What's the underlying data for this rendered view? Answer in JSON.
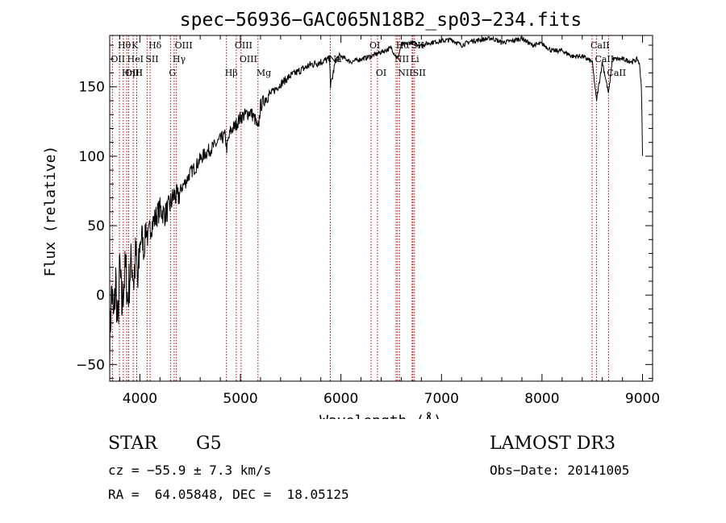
{
  "chart_data": {
    "type": "line",
    "title": "spec−56936−GAC065N18B2_sp03−234.fits",
    "xlabel": "Wavelength (Å)",
    "ylabel": "Flux (relative)",
    "xlim": [
      3700,
      9100
    ],
    "ylim": [
      -62,
      187
    ],
    "xticks": [
      4000,
      5000,
      6000,
      7000,
      8000,
      9000
    ],
    "yticks": [
      -50,
      0,
      50,
      100,
      150
    ],
    "xtick_labels": [
      "4000",
      "5000",
      "6000",
      "7000",
      "8000",
      "9000"
    ],
    "ytick_labels": [
      "−50",
      "0",
      "50",
      "100",
      "150"
    ],
    "grid": false,
    "series": [
      {
        "name": "flux",
        "x": [
          3700,
          3720,
          3740,
          3760,
          3780,
          3800,
          3820,
          3840,
          3860,
          3880,
          3900,
          3920,
          3940,
          3960,
          3980,
          4000,
          4020,
          4040,
          4060,
          4080,
          4100,
          4150,
          4200,
          4250,
          4300,
          4340,
          4380,
          4420,
          4460,
          4500,
          4550,
          4600,
          4650,
          4700,
          4750,
          4800,
          4850,
          4861,
          4900,
          4950,
          5000,
          5050,
          5100,
          5150,
          5175,
          5200,
          5250,
          5300,
          5400,
          5500,
          5600,
          5700,
          5800,
          5890,
          5896,
          5950,
          6000,
          6100,
          6200,
          6300,
          6400,
          6500,
          6563,
          6600,
          6700,
          6800,
          6900,
          7000,
          7100,
          7200,
          7300,
          7400,
          7500,
          7600,
          7700,
          7800,
          7900,
          8000,
          8100,
          8200,
          8300,
          8400,
          8500,
          8542,
          8600,
          8662,
          8700,
          8800,
          8900,
          8950,
          8970,
          8990,
          9000
        ],
        "values": [
          -35,
          5,
          -20,
          12,
          -25,
          22,
          -10,
          8,
          20,
          -5,
          15,
          25,
          10,
          30,
          5,
          35,
          45,
          30,
          50,
          40,
          48,
          55,
          62,
          58,
          65,
          72,
          70,
          78,
          82,
          88,
          92,
          98,
          102,
          105,
          108,
          112,
          115,
          105,
          118,
          122,
          128,
          130,
          132,
          126,
          118,
          136,
          142,
          145,
          152,
          158,
          162,
          166,
          168,
          170,
          150,
          170,
          172,
          168,
          170,
          172,
          175,
          178,
          170,
          180,
          182,
          180,
          182,
          183,
          184,
          180,
          183,
          184,
          185,
          182,
          183,
          185,
          180,
          181,
          176,
          176,
          172,
          172,
          168,
          140,
          168,
          145,
          170,
          170,
          168,
          170,
          166,
          150,
          100
        ]
      }
    ],
    "lines": [
      {
        "name": "Hθ",
        "x": 3797,
        "row": 1
      },
      {
        "name": "OII",
        "x": 3727,
        "row": 2
      },
      {
        "name": "OIII",
        "x": 3869,
        "row": 3
      },
      {
        "name": "Hη",
        "x": 3835,
        "row": 3
      },
      {
        "name": "HeI",
        "x": 3889,
        "row": 2
      },
      {
        "name": "K",
        "x": 3934,
        "row": 1
      },
      {
        "name": "SII",
        "x": 4072,
        "row": 2
      },
      {
        "name": "H",
        "x": 3969,
        "row": 3
      },
      {
        "name": "Hδ",
        "x": 4102,
        "row": 1
      },
      {
        "name": "OIII",
        "x": 4363,
        "row": 1
      },
      {
        "name": "Hγ",
        "x": 4341,
        "row": 2
      },
      {
        "name": "G",
        "x": 4305,
        "row": 3
      },
      {
        "name": "Hβ",
        "x": 4861,
        "row": 3
      },
      {
        "name": "OIII",
        "x": 4959,
        "row": 1
      },
      {
        "name": "OIII",
        "x": 5007,
        "row": 2
      },
      {
        "name": "Mg",
        "x": 5175,
        "row": 3
      },
      {
        "name": "Na",
        "x": 5894,
        "row": 2
      },
      {
        "name": "OI",
        "x": 6300,
        "row": 1
      },
      {
        "name": "OI",
        "x": 6363,
        "row": 3
      },
      {
        "name": "Hα",
        "x": 6563,
        "row": 1
      },
      {
        "name": "NII",
        "x": 6548,
        "row": 2
      },
      {
        "name": "NII",
        "x": 6583,
        "row": 3
      },
      {
        "name": "SII",
        "x": 6716,
        "row": 1
      },
      {
        "name": "Li",
        "x": 6708,
        "row": 2
      },
      {
        "name": "SII",
        "x": 6731,
        "row": 3
      },
      {
        "name": "CaII",
        "x": 8498,
        "row": 1
      },
      {
        "name": "CaII",
        "x": 8542,
        "row": 2
      },
      {
        "name": "CaII",
        "x": 8662,
        "row": 3
      }
    ]
  },
  "info": {
    "class": "STAR",
    "subclass": "G5",
    "survey": "LAMOST DR3",
    "velocity": "cz = −55.9 ± 7.3 km/s",
    "obs_date": "Obs−Date: 20141005",
    "coords": "RA =  64.05848, DEC =  18.05125"
  }
}
